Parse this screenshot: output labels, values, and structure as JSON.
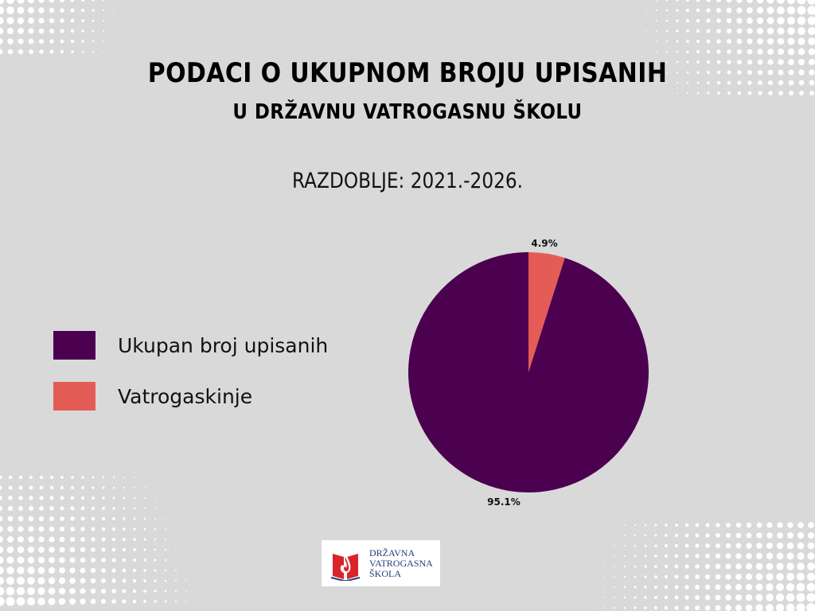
{
  "title": "PODACI O UKUPNOM BROJU UPISANIH",
  "subtitle": "U DRŽAVNU VATROGASNU ŠKOLU",
  "period": "RAZDOBLJE: 2021.-2026.",
  "logo": {
    "lines": [
      "DRŽAVNA",
      "VATROGASNA",
      "ŠKOLA"
    ],
    "text_color": "#1f3f7a",
    "icon": "flame-book-icon"
  },
  "colors": {
    "background": "#d9d9d9"
  },
  "chart_data": {
    "type": "pie",
    "title": "",
    "legend_placement": "left",
    "slices": [
      {
        "label": "Ukupan broj upisanih",
        "value": 95.1,
        "display": "95.1%",
        "color": "#4b0050"
      },
      {
        "label": "Vatrogaskinje",
        "value": 4.9,
        "display": "4.9%",
        "color": "#e55c57"
      }
    ]
  }
}
